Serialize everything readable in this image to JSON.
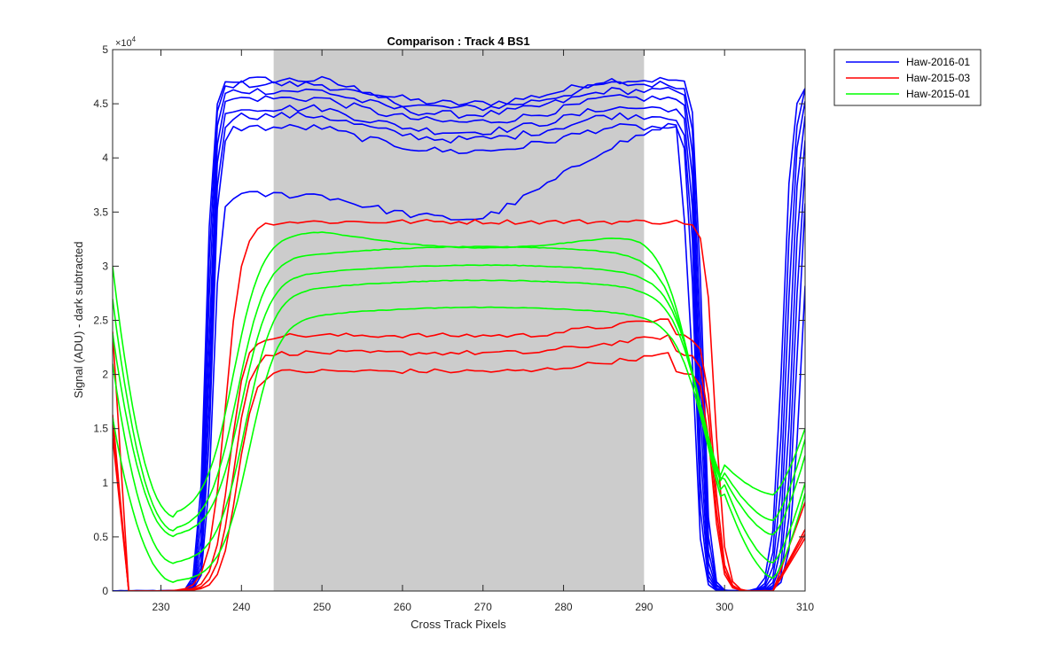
{
  "chart_data": {
    "type": "line",
    "title": "Comparison : Track 4  BS1",
    "xlabel": "Cross Track Pixels",
    "ylabel": "Signal (ADU) - dark subtracted",
    "exponent_label": "×10",
    "exponent_power": "4",
    "xlim": [
      224,
      310
    ],
    "ylim": [
      0,
      50000
    ],
    "xticks": [
      230,
      240,
      250,
      260,
      270,
      280,
      290,
      300,
      310
    ],
    "yticks": [
      0,
      5000,
      10000,
      15000,
      20000,
      25000,
      30000,
      35000,
      40000,
      45000,
      50000
    ],
    "ytick_labels": [
      "0",
      "0.5",
      "1",
      "1.5",
      "2",
      "2.5",
      "3",
      "3.5",
      "4",
      "4.5",
      "5"
    ],
    "shaded_region": {
      "x": [
        244,
        290
      ],
      "color": "#cccccc"
    },
    "legend": {
      "placement": "outside-top-right",
      "entries": [
        {
          "name": "Haw-2016-01",
          "color": "#0000ff"
        },
        {
          "name": "Haw-2015-03",
          "color": "#ff0000"
        },
        {
          "name": "Haw-2015-01",
          "color": "#00ff00"
        }
      ]
    },
    "groups": [
      {
        "name": "Haw-2016-01",
        "color": "#0000ff",
        "kind": "blue",
        "levels": [
          47200,
          46800,
          46200,
          45500,
          44600,
          43900,
          42800,
          36600
        ],
        "left_edge": 235.6,
        "right_edge": 297.2,
        "right_rise": 307.2,
        "noise": 700
      },
      {
        "name": "Haw-2015-03",
        "color": "#ff0000",
        "kind": "red",
        "levels": [
          34100,
          23600,
          22000,
          20300
        ],
        "left_edge": 238.0,
        "right_edge": 298.8,
        "noise": 450
      },
      {
        "name": "Haw-2015-01",
        "color": "#00ff00",
        "kind": "green",
        "levels": [
          33200,
          31200,
          29500,
          28100,
          25600
        ],
        "mins": [
          6800,
          5500,
          5000,
          2500,
          800
        ],
        "right_mins": [
          8900,
          6500,
          5200,
          2600,
          1200
        ],
        "left_start": [
          30000,
          27000,
          23800,
          21000,
          16000
        ],
        "right_end": [
          15000,
          14000,
          12500,
          10000,
          9000
        ]
      }
    ]
  }
}
